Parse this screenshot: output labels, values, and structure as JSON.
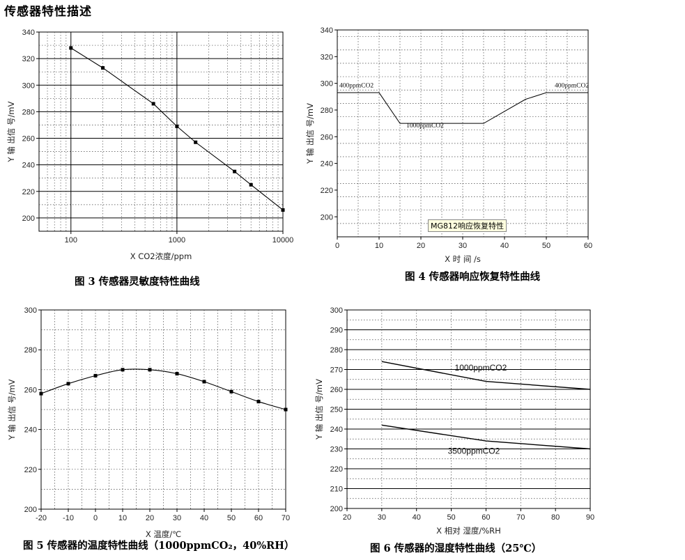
{
  "page": {
    "title": "传感器特性描述"
  },
  "charts": {
    "sensitivity": {
      "caption": "图 3   传感器灵敏度特性曲线",
      "xlabel": "X CO2浓度/ppm",
      "ylabel": "Y 输 出信 号/mV"
    },
    "response": {
      "caption": "图 4 传感器响应恢复特性曲线",
      "xlabel": "X 时 间 /s",
      "ylabel": "Y 输 出信 号/mV",
      "note": "MG812响应恢复特性",
      "annotations": [
        "400ppmCO2",
        "1000ppmCO2",
        "400ppmCO2"
      ]
    },
    "temperature": {
      "caption": "图 5  传感器的温度特性曲线（1000ppmCO₂，40%RH）",
      "xlabel": "X 温度/℃",
      "ylabel": "Y 输 出信 号/mV"
    },
    "humidity": {
      "caption": "图 6  传感器的湿度特性曲线（25℃）",
      "xlabel": "X 相对 湿度/%RH",
      "ylabel": "Y 输 出信 号/mV",
      "series_labels": [
        "1000ppmCO2",
        "3500ppmCO2"
      ]
    }
  },
  "chart_data": [
    {
      "type": "line",
      "xscale": "log",
      "xlim": [
        50,
        10000
      ],
      "ylim": [
        190,
        340
      ],
      "xticks": [
        100,
        1000,
        10000
      ],
      "yticks": [
        200,
        220,
        240,
        260,
        280,
        300,
        320,
        340
      ],
      "x": [
        100,
        200,
        600,
        1000,
        1500,
        3500,
        5000,
        10000
      ],
      "y": [
        328,
        313,
        286,
        269,
        257,
        235,
        225,
        206
      ],
      "markers": true,
      "grid": true
    },
    {
      "type": "line",
      "xlim": [
        0,
        60
      ],
      "ylim": [
        185,
        340
      ],
      "xticks": [
        0,
        10,
        20,
        30,
        40,
        50,
        60
      ],
      "yticks": [
        200,
        220,
        240,
        260,
        280,
        300,
        320,
        340
      ],
      "x": [
        0,
        10,
        15,
        35,
        45,
        50,
        60
      ],
      "y": [
        293,
        293,
        270,
        270,
        288,
        293,
        293
      ],
      "grid": true
    },
    {
      "type": "line",
      "xlim": [
        -20,
        70
      ],
      "ylim": [
        200,
        300
      ],
      "xticks": [
        -20,
        -10,
        0,
        10,
        20,
        30,
        40,
        50,
        60,
        70
      ],
      "yticks": [
        200,
        220,
        240,
        260,
        280,
        300
      ],
      "x": [
        -20,
        -10,
        0,
        10,
        20,
        30,
        40,
        50,
        60,
        70
      ],
      "y": [
        258,
        263,
        267,
        270,
        270,
        268,
        264,
        259,
        254,
        250
      ],
      "markers": true,
      "grid": true
    },
    {
      "type": "line",
      "xlim": [
        20,
        90
      ],
      "ylim": [
        200,
        300
      ],
      "xticks": [
        20,
        30,
        40,
        50,
        60,
        70,
        80,
        90
      ],
      "yticks": [
        200,
        210,
        220,
        230,
        240,
        250,
        260,
        270,
        280,
        290,
        300
      ],
      "series": [
        {
          "name": "1000ppmCO2",
          "x": [
            30,
            60,
            90
          ],
          "y": [
            274,
            264,
            260
          ]
        },
        {
          "name": "3500ppmCO2",
          "x": [
            30,
            60,
            90
          ],
          "y": [
            242,
            234,
            230
          ]
        }
      ],
      "grid": true
    }
  ]
}
